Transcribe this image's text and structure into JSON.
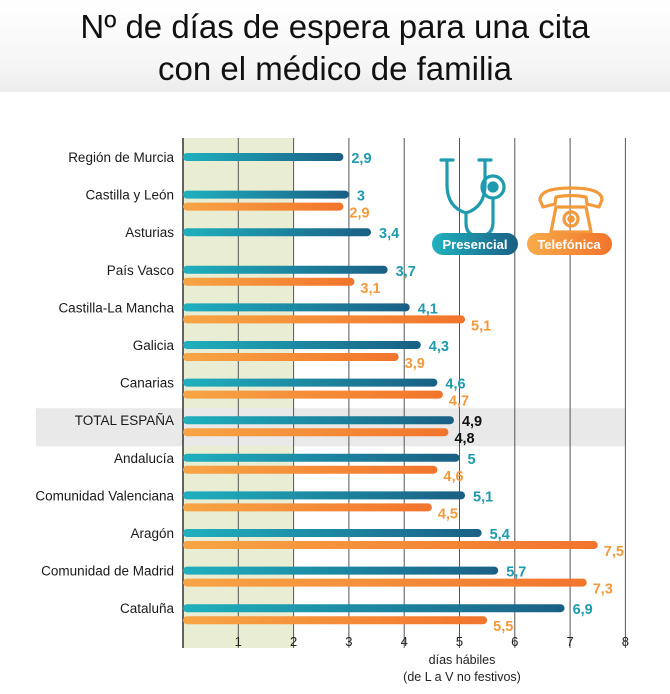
{
  "title_line1": "Nº de días de espera para una cita",
  "title_line2": "con el médico de familia",
  "chart_data": {
    "type": "bar",
    "orientation": "horizontal",
    "categories": [
      "Región de Murcia",
      "Castilla y León",
      "Asturias",
      "País Vasco",
      "Castilla-La Mancha",
      "Galicia",
      "Canarias",
      "TOTAL ESPAÑA",
      "Andalucía",
      "Comunidad Valenciana",
      "Aragón",
      "Comunidad de Madrid",
      "Cataluña"
    ],
    "series": [
      {
        "name": "Presencial",
        "color": "#1f9bb0",
        "values": [
          2.9,
          3,
          3.4,
          3.7,
          4.1,
          4.3,
          4.6,
          4.9,
          5,
          5.1,
          5.4,
          5.7,
          6.9
        ],
        "labels": [
          "2,9",
          "3",
          "3,4",
          "3,7",
          "4,1",
          "4,3",
          "4,6",
          "4,9",
          "5",
          "5,1",
          "5,4",
          "5,7",
          "6,9"
        ]
      },
      {
        "name": "Telefónica",
        "color": "#f39a3d",
        "values": [
          null,
          2.9,
          null,
          3.1,
          5.1,
          3.9,
          4.7,
          4.8,
          4.6,
          4.5,
          7.5,
          7.3,
          5.5
        ],
        "labels": [
          null,
          "2,9",
          null,
          "3,1",
          "5,1",
          "3,9",
          "4,7",
          "4,8",
          "4,6",
          "4,5",
          "7,5",
          "7,3",
          "5,5"
        ]
      }
    ],
    "highlight_category": "TOTAL ESPAÑA",
    "highlight_label_color": "#111111",
    "xlim": [
      0,
      8
    ],
    "ticks": [
      "1",
      "2",
      "3",
      "4",
      "5",
      "6",
      "7",
      "8"
    ],
    "tick_values": [
      1,
      2,
      3,
      4,
      5,
      6,
      7,
      8
    ],
    "shaded_range": [
      0,
      2
    ],
    "xlabel_line1": "días hábiles",
    "xlabel_line2": "(de L a V no festivos)",
    "grid": true,
    "legend_position": "top-right"
  },
  "legend": {
    "presencial_icon": "stethoscope-icon",
    "telefonica_icon": "telephone-icon",
    "presencial_color": "#1f9bb0",
    "telefonica_color": "#f39a3d"
  }
}
